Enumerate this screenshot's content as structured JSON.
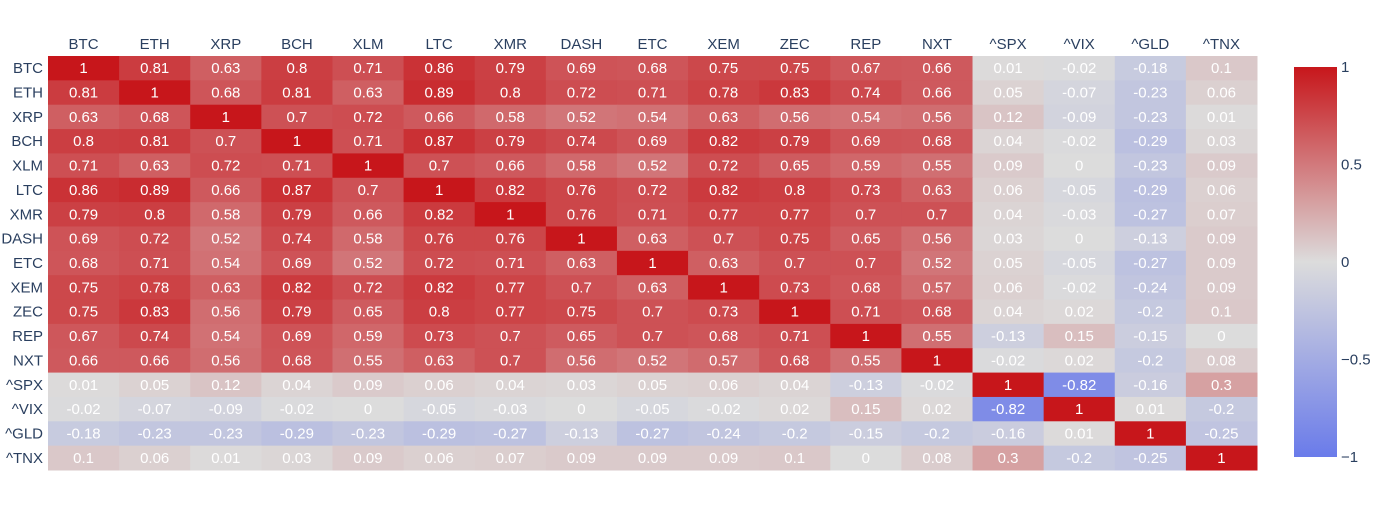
{
  "chart_data": {
    "type": "heatmap",
    "title": "",
    "xlabel": "",
    "ylabel": "",
    "x_labels": [
      "BTC",
      "ETH",
      "XRP",
      "BCH",
      "XLM",
      "LTC",
      "XMR",
      "DASH",
      "ETC",
      "XEM",
      "ZEC",
      "REP",
      "NXT",
      "^SPX",
      "^VIX",
      "^GLD",
      "^TNX"
    ],
    "y_labels": [
      "BTC",
      "ETH",
      "XRP",
      "BCH",
      "XLM",
      "LTC",
      "XMR",
      "DASH",
      "ETC",
      "XEM",
      "ZEC",
      "REP",
      "NXT",
      "^SPX",
      "^VIX",
      "^GLD",
      "^TNX"
    ],
    "values": [
      [
        1,
        0.81,
        0.63,
        0.8,
        0.71,
        0.86,
        0.79,
        0.69,
        0.68,
        0.75,
        0.75,
        0.67,
        0.66,
        0.01,
        -0.02,
        -0.18,
        0.1
      ],
      [
        0.81,
        1,
        0.68,
        0.81,
        0.63,
        0.89,
        0.8,
        0.72,
        0.71,
        0.78,
        0.83,
        0.74,
        0.66,
        0.05,
        -0.07,
        -0.23,
        0.06
      ],
      [
        0.63,
        0.68,
        1,
        0.7,
        0.72,
        0.66,
        0.58,
        0.52,
        0.54,
        0.63,
        0.56,
        0.54,
        0.56,
        0.12,
        -0.09,
        -0.23,
        0.01
      ],
      [
        0.8,
        0.81,
        0.7,
        1,
        0.71,
        0.87,
        0.79,
        0.74,
        0.69,
        0.82,
        0.79,
        0.69,
        0.68,
        0.04,
        -0.02,
        -0.29,
        0.03
      ],
      [
        0.71,
        0.63,
        0.72,
        0.71,
        1,
        0.7,
        0.66,
        0.58,
        0.52,
        0.72,
        0.65,
        0.59,
        0.55,
        0.09,
        0,
        -0.23,
        0.09
      ],
      [
        0.86,
        0.89,
        0.66,
        0.87,
        0.7,
        1,
        0.82,
        0.76,
        0.72,
        0.82,
        0.8,
        0.73,
        0.63,
        0.06,
        -0.05,
        -0.29,
        0.06
      ],
      [
        0.79,
        0.8,
        0.58,
        0.79,
        0.66,
        0.82,
        1,
        0.76,
        0.71,
        0.77,
        0.77,
        0.7,
        0.7,
        0.04,
        -0.03,
        -0.27,
        0.07
      ],
      [
        0.69,
        0.72,
        0.52,
        0.74,
        0.58,
        0.76,
        0.76,
        1,
        0.63,
        0.7,
        0.75,
        0.65,
        0.56,
        0.03,
        0,
        -0.13,
        0.09
      ],
      [
        0.68,
        0.71,
        0.54,
        0.69,
        0.52,
        0.72,
        0.71,
        0.63,
        1,
        0.63,
        0.7,
        0.7,
        0.52,
        0.05,
        -0.05,
        -0.27,
        0.09
      ],
      [
        0.75,
        0.78,
        0.63,
        0.82,
        0.72,
        0.82,
        0.77,
        0.7,
        0.63,
        1,
        0.73,
        0.68,
        0.57,
        0.06,
        -0.02,
        -0.24,
        0.09
      ],
      [
        0.75,
        0.83,
        0.56,
        0.79,
        0.65,
        0.8,
        0.77,
        0.75,
        0.7,
        0.73,
        1,
        0.71,
        0.68,
        0.04,
        0.02,
        -0.2,
        0.1
      ],
      [
        0.67,
        0.74,
        0.54,
        0.69,
        0.59,
        0.73,
        0.7,
        0.65,
        0.7,
        0.68,
        0.71,
        1,
        0.55,
        -0.13,
        0.15,
        -0.15,
        0
      ],
      [
        0.66,
        0.66,
        0.56,
        0.68,
        0.55,
        0.63,
        0.7,
        0.56,
        0.52,
        0.57,
        0.68,
        0.55,
        1,
        -0.02,
        0.02,
        -0.2,
        0.08
      ],
      [
        0.01,
        0.05,
        0.12,
        0.04,
        0.09,
        0.06,
        0.04,
        0.03,
        0.05,
        0.06,
        0.04,
        -0.13,
        -0.02,
        1,
        -0.82,
        -0.16,
        0.3
      ],
      [
        -0.02,
        -0.07,
        -0.09,
        -0.02,
        0,
        -0.05,
        -0.03,
        0,
        -0.05,
        -0.02,
        0.02,
        0.15,
        0.02,
        -0.82,
        1,
        0.01,
        -0.2
      ],
      [
        -0.18,
        -0.23,
        -0.23,
        -0.29,
        -0.23,
        -0.29,
        -0.27,
        -0.13,
        -0.27,
        -0.24,
        -0.2,
        -0.15,
        -0.2,
        -0.16,
        0.01,
        1,
        -0.25
      ],
      [
        0.1,
        0.06,
        0.01,
        0.03,
        0.09,
        0.06,
        0.07,
        0.09,
        0.09,
        0.09,
        0.1,
        0,
        0.08,
        0.3,
        -0.2,
        -0.25,
        1
      ]
    ],
    "zrange": [
      -1,
      1
    ],
    "colorscale": "bluered",
    "colorbar": {
      "tickvals": [
        1,
        0.5,
        0,
        -0.5,
        -1
      ],
      "ticktext": [
        "1",
        "0.5",
        "0",
        "−0.5",
        "−1"
      ],
      "placement": "right"
    },
    "colors": {
      "low": "#6a7bea",
      "mid": "#dcdcdc",
      "high": "#c7161b",
      "tick_text": "#2a3f5f",
      "cell_text": "#ffffff"
    }
  }
}
